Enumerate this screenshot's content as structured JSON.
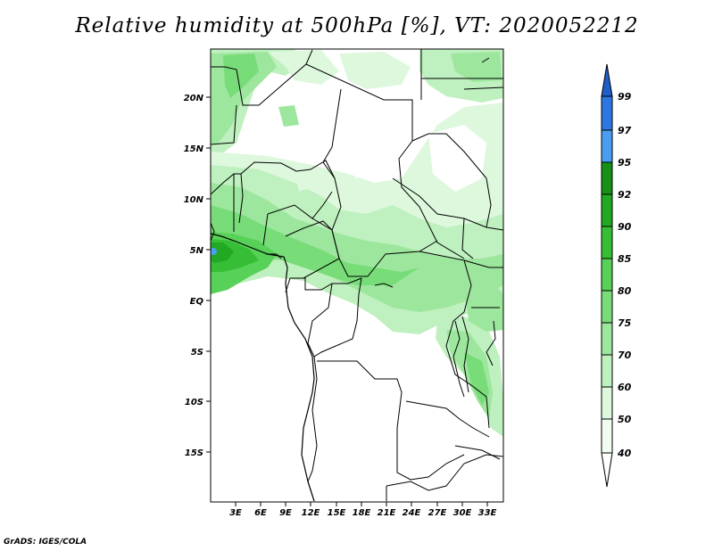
{
  "title": "Relative humidity at 500hPa [%], VT: 2020052212",
  "credit": "GrADS: IGES/COLA",
  "map": {
    "variable": "Relative humidity",
    "level": "500hPa",
    "units": "%",
    "valid_time": "2020052212",
    "lat_labels": [
      "20N",
      "15N",
      "10N",
      "5N",
      "EQ",
      "5S",
      "10S",
      "15S"
    ],
    "lon_labels": [
      "3E",
      "6E",
      "9E",
      "12E",
      "15E",
      "18E",
      "21E",
      "24E",
      "27E",
      "30E",
      "33E"
    ]
  },
  "colorbar": {
    "levels": [
      "99",
      "97",
      "95",
      "92",
      "90",
      "85",
      "80",
      "75",
      "70",
      "60",
      "50",
      "40"
    ],
    "colors": [
      "#1f5fc8",
      "#2c78e0",
      "#4a9ef0",
      "#169016",
      "#22a822",
      "#36bf36",
      "#57d157",
      "#78dc78",
      "#9de69d",
      "#bff0bf",
      "#ddf8dd",
      "#f2fdf2"
    ]
  }
}
